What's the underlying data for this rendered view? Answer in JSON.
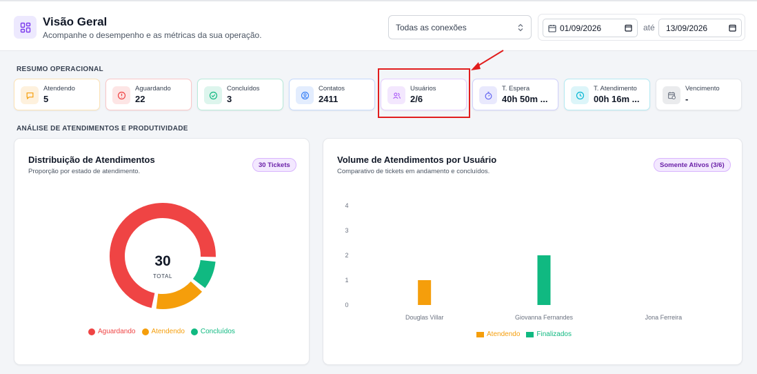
{
  "header": {
    "title": "Visão Geral",
    "subtitle": "Acompanhe o desempenho e as métricas da sua operação.",
    "connection_select": "Todas as conexões",
    "date_from": "01/09/2026",
    "date_sep": "até",
    "date_to": "13/09/2026"
  },
  "sections": {
    "summary": "RESUMO OPERACIONAL",
    "analysis": "ANÁLISE DE ATENDIMENTOS E PRODUTIVIDADE"
  },
  "kpis": [
    {
      "label": "Atendendo",
      "value": "5",
      "icon": "chat-icon",
      "color": "#f59e0b"
    },
    {
      "label": "Aguardando",
      "value": "22",
      "icon": "alert-circle-icon",
      "color": "#ef4444"
    },
    {
      "label": "Concluídos",
      "value": "3",
      "icon": "check-circle-icon",
      "color": "#10b981"
    },
    {
      "label": "Contatos",
      "value": "2411",
      "icon": "contact-icon",
      "color": "#3b82f6"
    },
    {
      "label": "Usuários",
      "value": "2/6",
      "icon": "users-icon",
      "color": "#a855f7"
    },
    {
      "label": "T. Espera",
      "value": "40h 50m ...",
      "icon": "stopwatch-icon",
      "color": "#6366f1"
    },
    {
      "label": "T. Atendimento",
      "value": "00h 16m ...",
      "icon": "clock-icon",
      "color": "#06b6d4"
    },
    {
      "label": "Vencimento",
      "value": "-",
      "icon": "calendar-clock-icon",
      "color": "#6b7280"
    }
  ],
  "donut_card": {
    "title": "Distribuição de Atendimentos",
    "subtitle": "Proporção por estado de atendimento.",
    "badge": "30 Tickets",
    "center_value": "30",
    "center_label": "TOTAL"
  },
  "bar_card": {
    "title": "Volume de Atendimentos por Usuário",
    "subtitle": "Comparativo de tickets em andamento e concluídos.",
    "badge": "Somente Ativos (3/6)"
  },
  "chart_data": [
    {
      "type": "pie",
      "categories": [
        "Aguardando",
        "Atendendo",
        "Concluídos"
      ],
      "values": [
        22,
        5,
        3
      ],
      "colors": [
        "#ef4444",
        "#f59e0b",
        "#10b981"
      ],
      "legend": "bottom"
    },
    {
      "type": "bar",
      "categories": [
        "Douglas Villar",
        "Giovanna Fernandes",
        "Jona Ferreira"
      ],
      "series": [
        {
          "name": "Atendendo",
          "values": [
            1,
            0,
            0
          ],
          "color": "#f59e0b"
        },
        {
          "name": "Finalizados",
          "values": [
            0,
            2,
            0
          ],
          "color": "#10b981"
        }
      ],
      "yticks": [
        "0",
        "1",
        "2",
        "3",
        "4"
      ],
      "ylim": [
        0,
        4
      ],
      "grid": false,
      "legend": "bottom"
    }
  ]
}
